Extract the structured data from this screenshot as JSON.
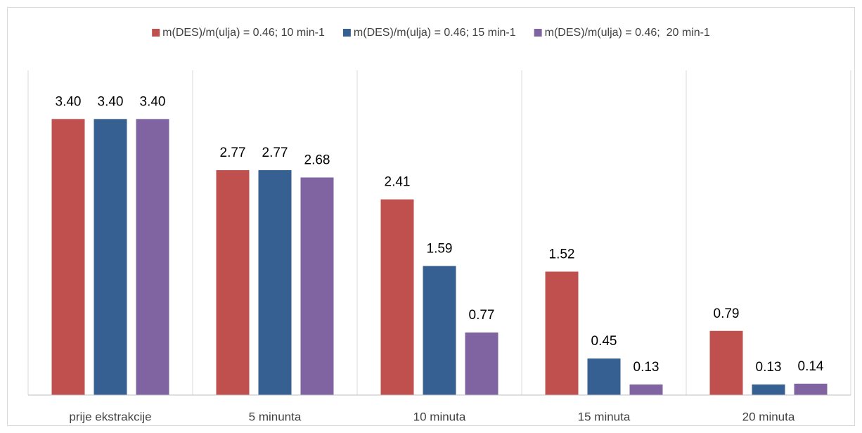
{
  "chart_data": {
    "type": "bar",
    "categories": [
      "prije ekstrakcije",
      "5 minunta",
      "10 minuta",
      "15 minuta",
      "20 minuta"
    ],
    "series": [
      {
        "name": "m(DES)/m(ulja) = 0.46; 10 min-1",
        "color": "#c0504d",
        "values": [
          3.4,
          2.77,
          2.41,
          1.52,
          0.79
        ],
        "value_labels": [
          "3.40",
          "2.77",
          "2.41",
          "1.52",
          "0.79"
        ]
      },
      {
        "name": "m(DES)/m(ulja) = 0.46; 15 min-1",
        "color": "#366092",
        "values": [
          3.4,
          2.77,
          1.59,
          0.45,
          0.13
        ],
        "value_labels": [
          "3.40",
          "2.77",
          "1.59",
          "0.45",
          "0.13"
        ]
      },
      {
        "name": "m(DES)/m(ulja) = 0.46;  20 min-1",
        "color": "#8064a2",
        "values": [
          3.4,
          2.68,
          0.77,
          0.13,
          0.14
        ],
        "value_labels": [
          "3.40",
          "2.68",
          "0.77",
          "0.13",
          "0.14"
        ]
      }
    ],
    "ylim": [
      0,
      4
    ],
    "legend": "top"
  }
}
